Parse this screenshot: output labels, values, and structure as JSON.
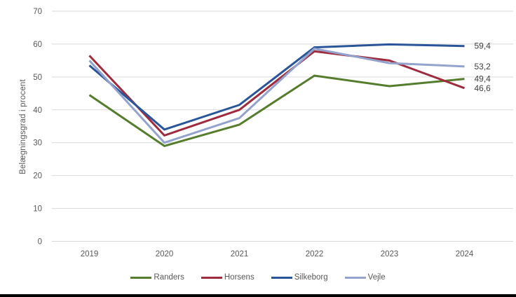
{
  "figure": {
    "background": "#FFFFFF",
    "bottom_bar_color": "#000000",
    "gridline_color": "#D9D9D9",
    "tick_text_color": "#595959",
    "data_label_color": "#3F3F3F"
  },
  "chart_data": {
    "type": "line",
    "title": "",
    "xlabel": "",
    "ylabel": "Belægningsgrad i procent",
    "categories": [
      "2019",
      "2020",
      "2021",
      "2022",
      "2023",
      "2024"
    ],
    "ylim": [
      0,
      70
    ],
    "yticks": [
      0,
      10,
      20,
      30,
      40,
      50,
      60,
      70
    ],
    "grid": "horizontal",
    "legend_position": "bottom",
    "series": [
      {
        "name": "Randers",
        "color": "#567D2E",
        "values": [
          44.5,
          29.0,
          35.5,
          50.4,
          47.2,
          49.4
        ],
        "end_label": "49,4"
      },
      {
        "name": "Horsens",
        "color": "#9E2B3E",
        "values": [
          56.5,
          32.2,
          40.0,
          57.8,
          55.0,
          46.6
        ],
        "end_label": "46,6"
      },
      {
        "name": "Silkeborg",
        "color": "#2A5699",
        "values": [
          53.5,
          34.0,
          41.5,
          59.0,
          59.9,
          59.4
        ],
        "end_label": "59,4"
      },
      {
        "name": "Vejle",
        "color": "#93A3CC",
        "values": [
          55.0,
          30.0,
          37.5,
          58.6,
          54.2,
          53.2
        ],
        "end_label": "53,2"
      }
    ]
  }
}
